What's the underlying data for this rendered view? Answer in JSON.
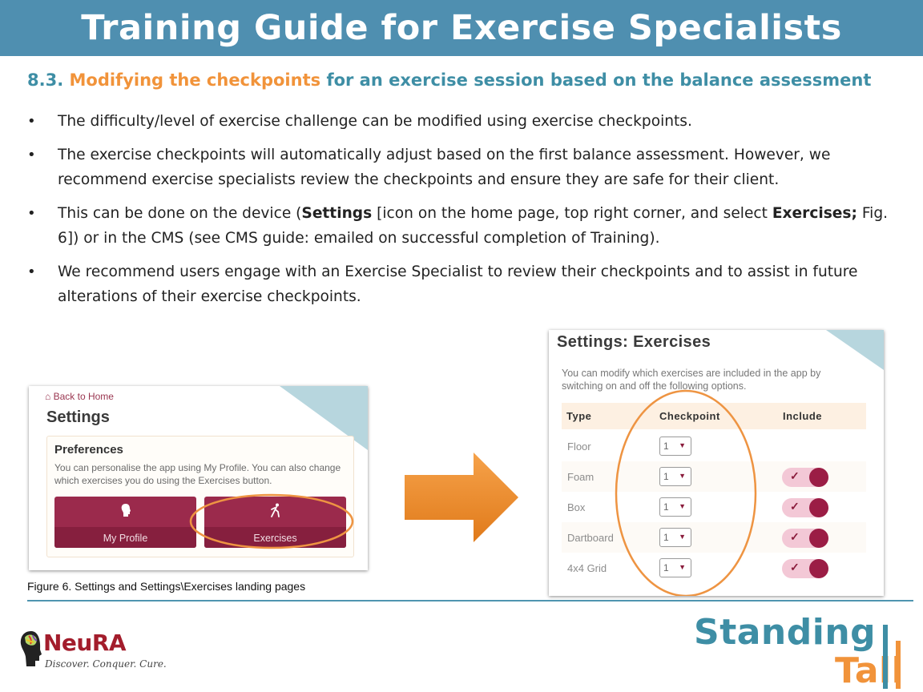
{
  "header": {
    "title": "Training Guide for Exercise Specialists"
  },
  "section": {
    "number": "8.3.",
    "highlight": "Modifying the checkpoints",
    "rest": "for an exercise session based on the balance assessment"
  },
  "bullets": {
    "b1": "The difficulty/level of exercise challenge can be modified using exercise checkpoints.",
    "b2": "The exercise checkpoints will automatically adjust based on the first balance assessment. However, we recommend exercise specialists review the checkpoints and ensure they are safe for their client.",
    "b3_pre": "This can be done on the device (",
    "b3_bold1": "Settings",
    "b3_mid": " [icon on the home page, top right corner, and select ",
    "b3_bold2": "Exercises;",
    "b3_post": " Fig. 6]) or in the CMS (see CMS guide: emailed on successful completion of Training).",
    "b4": "We recommend users engage with an Exercise Specialist to review their checkpoints and to assist in future alterations of their exercise checkpoints."
  },
  "settings_screen": {
    "back_link": "Back to Home",
    "title": "Settings",
    "prefs_title": "Preferences",
    "prefs_desc": "You can personalise the app using My Profile. You can also change which exercises you do using the Exercises button.",
    "btn_profile": "My Profile",
    "btn_exercises": "Exercises"
  },
  "figure_caption": "Figure 6. Settings and Settings\\Exercises landing pages",
  "exercises_screen": {
    "title": "Settings: Exercises",
    "desc": "You can modify which exercises are included in the app by switching on and off the following options.",
    "col_type": "Type",
    "col_checkpoint": "Checkpoint",
    "col_include": "Include",
    "rows": [
      {
        "type": "Floor",
        "checkpoint": "1",
        "include": null
      },
      {
        "type": "Foam",
        "checkpoint": "1",
        "include": true
      },
      {
        "type": "Box",
        "checkpoint": "1",
        "include": true
      },
      {
        "type": "Dartboard",
        "checkpoint": "1",
        "include": true
      },
      {
        "type": "4x4 Grid",
        "checkpoint": "1",
        "include": true
      }
    ]
  },
  "logos": {
    "neura_name": "NeuRA",
    "neura_tagline": "Discover. Conquer. Cure.",
    "standing": "Standing",
    "tall": "Tall"
  },
  "colors": {
    "banner": "#4f8fb0",
    "accent_orange": "#f1933a",
    "accent_teal": "#3e8ea5",
    "app_maroon": "#9b2a4c"
  }
}
